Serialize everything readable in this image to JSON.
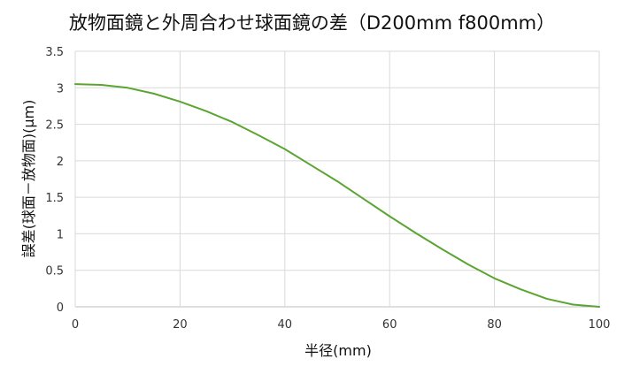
{
  "chart_data": {
    "type": "line",
    "title": "放物面鏡と外周合わせ球面鏡の差（D200mm f800mm）",
    "xlabel": "半径(mm)",
    "ylabel": "誤差(球面－放物面)(μm)",
    "xlim": [
      0,
      100
    ],
    "ylim": [
      0,
      3.5
    ],
    "x_ticks": [
      "0",
      "20",
      "40",
      "60",
      "80",
      "100"
    ],
    "y_ticks": [
      "0",
      "0.5",
      "1",
      "1.5",
      "2",
      "2.5",
      "3",
      "3.5"
    ],
    "grid": true,
    "legend": "none",
    "series": [
      {
        "color": "#5aa531",
        "x": [
          0,
          5,
          10,
          15,
          20,
          25,
          30,
          35,
          40,
          45,
          50,
          55,
          60,
          65,
          70,
          75,
          80,
          85,
          90,
          95,
          100
        ],
        "y": [
          3.05,
          3.04,
          3.0,
          2.92,
          2.81,
          2.68,
          2.53,
          2.35,
          2.16,
          1.94,
          1.72,
          1.48,
          1.24,
          1.01,
          0.79,
          0.58,
          0.39,
          0.24,
          0.11,
          0.03,
          0.0
        ]
      }
    ]
  }
}
